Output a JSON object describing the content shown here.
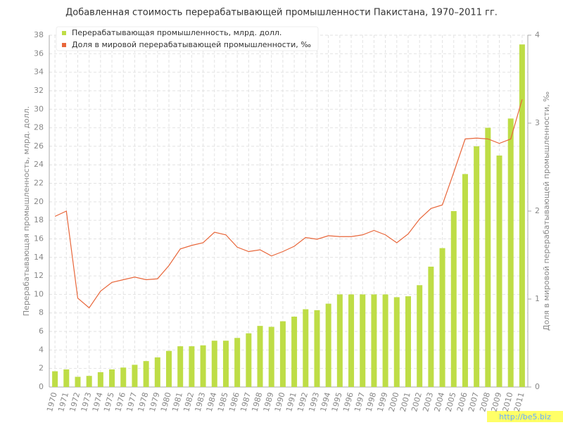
{
  "chart_data": {
    "type": "bar_line",
    "title": "Добавленная стоимость перерабатывающей промышленности Пакистана, 1970–2011 гг.",
    "ylabel": "Перерабатывающая промышленность, млрд. долл.",
    "y2label": "Доля в мировой перерабатывающей промышленности, ‰",
    "watermark": "http://be5.biz",
    "categories": [
      "1970",
      "1971",
      "1972",
      "1973",
      "1974",
      "1975",
      "1976",
      "1977",
      "1978",
      "1979",
      "1980",
      "1981",
      "1982",
      "1983",
      "1984",
      "1985",
      "1986",
      "1987",
      "1988",
      "1989",
      "1990",
      "1991",
      "1992",
      "1993",
      "1994",
      "1995",
      "1996",
      "1997",
      "1998",
      "1999",
      "2000",
      "2001",
      "2002",
      "2003",
      "2004",
      "2005",
      "2006",
      "2007",
      "2008",
      "2009",
      "2010",
      "2011"
    ],
    "series": [
      {
        "name": "Перерабатывающая промышленность, млрд. долл.",
        "kind": "bar",
        "color": "#bedd46",
        "values": [
          1.7,
          1.9,
          1.1,
          1.2,
          1.6,
          1.9,
          2.1,
          2.4,
          2.8,
          3.2,
          3.9,
          4.4,
          4.4,
          4.5,
          5.0,
          5.0,
          5.3,
          5.8,
          6.6,
          6.5,
          7.1,
          7.6,
          8.4,
          8.3,
          9.0,
          10.0,
          10.0,
          10.0,
          10.0,
          10.0,
          9.7,
          9.8,
          11.0,
          13.0,
          15.0,
          19.0,
          23.0,
          26.0,
          28.0,
          25.0,
          29.0,
          37.0
        ]
      },
      {
        "name": "Доля в мировой перерабатывающей промышленности, ‰",
        "kind": "line",
        "axis": "y2",
        "color": "#e8663a",
        "values": [
          1.94,
          2.0,
          1.01,
          0.9,
          1.09,
          1.19,
          1.22,
          1.25,
          1.22,
          1.23,
          1.38,
          1.57,
          1.61,
          1.64,
          1.76,
          1.73,
          1.59,
          1.54,
          1.56,
          1.49,
          1.54,
          1.6,
          1.7,
          1.68,
          1.72,
          1.71,
          1.71,
          1.73,
          1.78,
          1.73,
          1.64,
          1.74,
          1.91,
          2.03,
          2.07,
          2.44,
          2.82,
          2.83,
          2.82,
          2.77,
          2.82,
          3.27
        ]
      }
    ],
    "ylim": [
      0,
      38
    ],
    "yticks": [
      0,
      2,
      4,
      6,
      8,
      10,
      12,
      14,
      16,
      18,
      20,
      22,
      24,
      26,
      28,
      30,
      32,
      34,
      36,
      38
    ],
    "y2lim": [
      0,
      4
    ],
    "y2ticks": [
      0,
      1,
      2,
      3,
      4
    ],
    "grid": true,
    "legend": "top-left"
  }
}
